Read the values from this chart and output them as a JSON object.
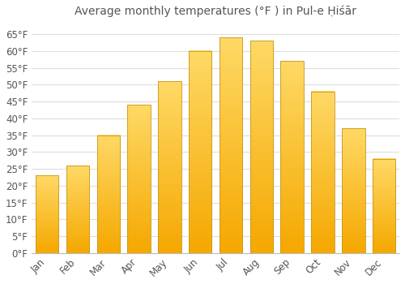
{
  "title": "Average monthly temperatures (°F ) in Pul-e Ḥiśār",
  "months": [
    "Jan",
    "Feb",
    "Mar",
    "Apr",
    "May",
    "Jun",
    "Jul",
    "Aug",
    "Sep",
    "Oct",
    "Nov",
    "Dec"
  ],
  "values": [
    23,
    26,
    35,
    44,
    51,
    60,
    64,
    63,
    57,
    48,
    37,
    28
  ],
  "bar_color_bottom": "#F5A800",
  "bar_color_top": "#FFD966",
  "bar_edge_color": "#C8961A",
  "background_color": "#FFFFFF",
  "grid_color": "#DDDDDD",
  "text_color": "#555555",
  "ylim": [
    0,
    68
  ],
  "yticks": [
    0,
    5,
    10,
    15,
    20,
    25,
    30,
    35,
    40,
    45,
    50,
    55,
    60,
    65
  ],
  "ylabel_suffix": "°F",
  "title_fontsize": 10,
  "tick_fontsize": 8.5,
  "bar_width": 0.75
}
